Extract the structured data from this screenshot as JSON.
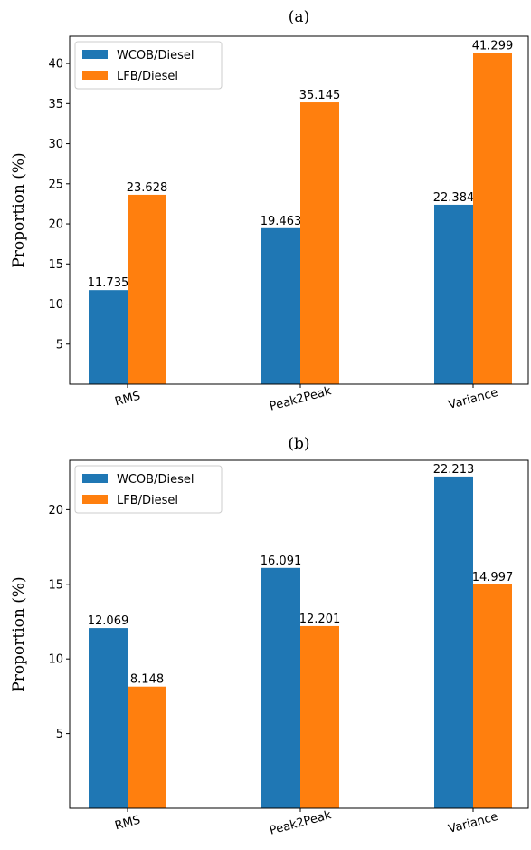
{
  "chart_data": [
    {
      "type": "bar",
      "title": "(a)",
      "xlabel": "",
      "ylabel": "Proportion (%)",
      "categories": [
        "RMS",
        "Peak2Peak",
        "Variance"
      ],
      "series": [
        {
          "name": "WCOB/Diesel",
          "values": [
            11.735,
            19.463,
            22.384
          ],
          "labels": [
            "11.735",
            "19.463",
            "22.384"
          ]
        },
        {
          "name": "LFB/Diesel",
          "values": [
            23.628,
            35.145,
            41.299
          ],
          "labels": [
            "23.628",
            "35.145",
            "41.299"
          ]
        }
      ],
      "ylim": [
        0,
        43.4
      ],
      "yticks": [
        5,
        10,
        15,
        20,
        25,
        30,
        35,
        40
      ],
      "legend": "top-left",
      "grid": false
    },
    {
      "type": "bar",
      "title": "(b)",
      "xlabel": "",
      "ylabel": "Proportion (%)",
      "categories": [
        "RMS",
        "Peak2Peak",
        "Variance"
      ],
      "series": [
        {
          "name": "WCOB/Diesel",
          "values": [
            12.069,
            16.091,
            22.213
          ],
          "labels": [
            "12.069",
            "16.091",
            "22.213"
          ]
        },
        {
          "name": "LFB/Diesel",
          "values": [
            8.148,
            12.201,
            14.997
          ],
          "labels": [
            "8.148",
            "12.201",
            "14.997"
          ]
        }
      ],
      "ylim": [
        0,
        23.3
      ],
      "yticks": [
        5,
        10,
        15,
        20
      ],
      "legend": "top-left",
      "grid": false
    }
  ],
  "colors": {
    "series_0": "#1f77b4",
    "series_1": "#ff7f0e"
  }
}
